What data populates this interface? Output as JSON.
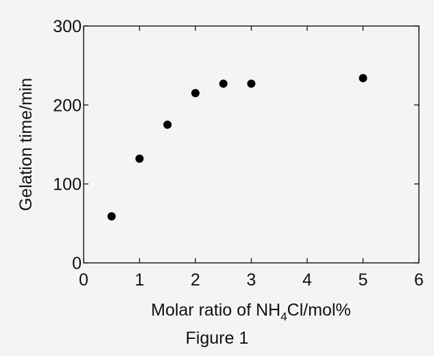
{
  "chart_data": {
    "type": "scatter",
    "x": [
      0.5,
      1.0,
      1.5,
      2.0,
      2.5,
      3.0,
      5.0
    ],
    "y": [
      59,
      132,
      175,
      215,
      227,
      227,
      234
    ],
    "title": "",
    "xlabel_parts": [
      "Molar ratio of NH",
      "4",
      "Cl/mol%"
    ],
    "ylabel": "Gelation time/min",
    "xlim": [
      0,
      6
    ],
    "ylim": [
      0,
      300
    ],
    "xticks": [
      "0",
      "1",
      "2",
      "3",
      "4",
      "5",
      "6"
    ],
    "yticks": [
      "0",
      "100",
      "200",
      "300"
    ],
    "grid": false,
    "marker_color": "#000000"
  },
  "caption": "Figure 1"
}
